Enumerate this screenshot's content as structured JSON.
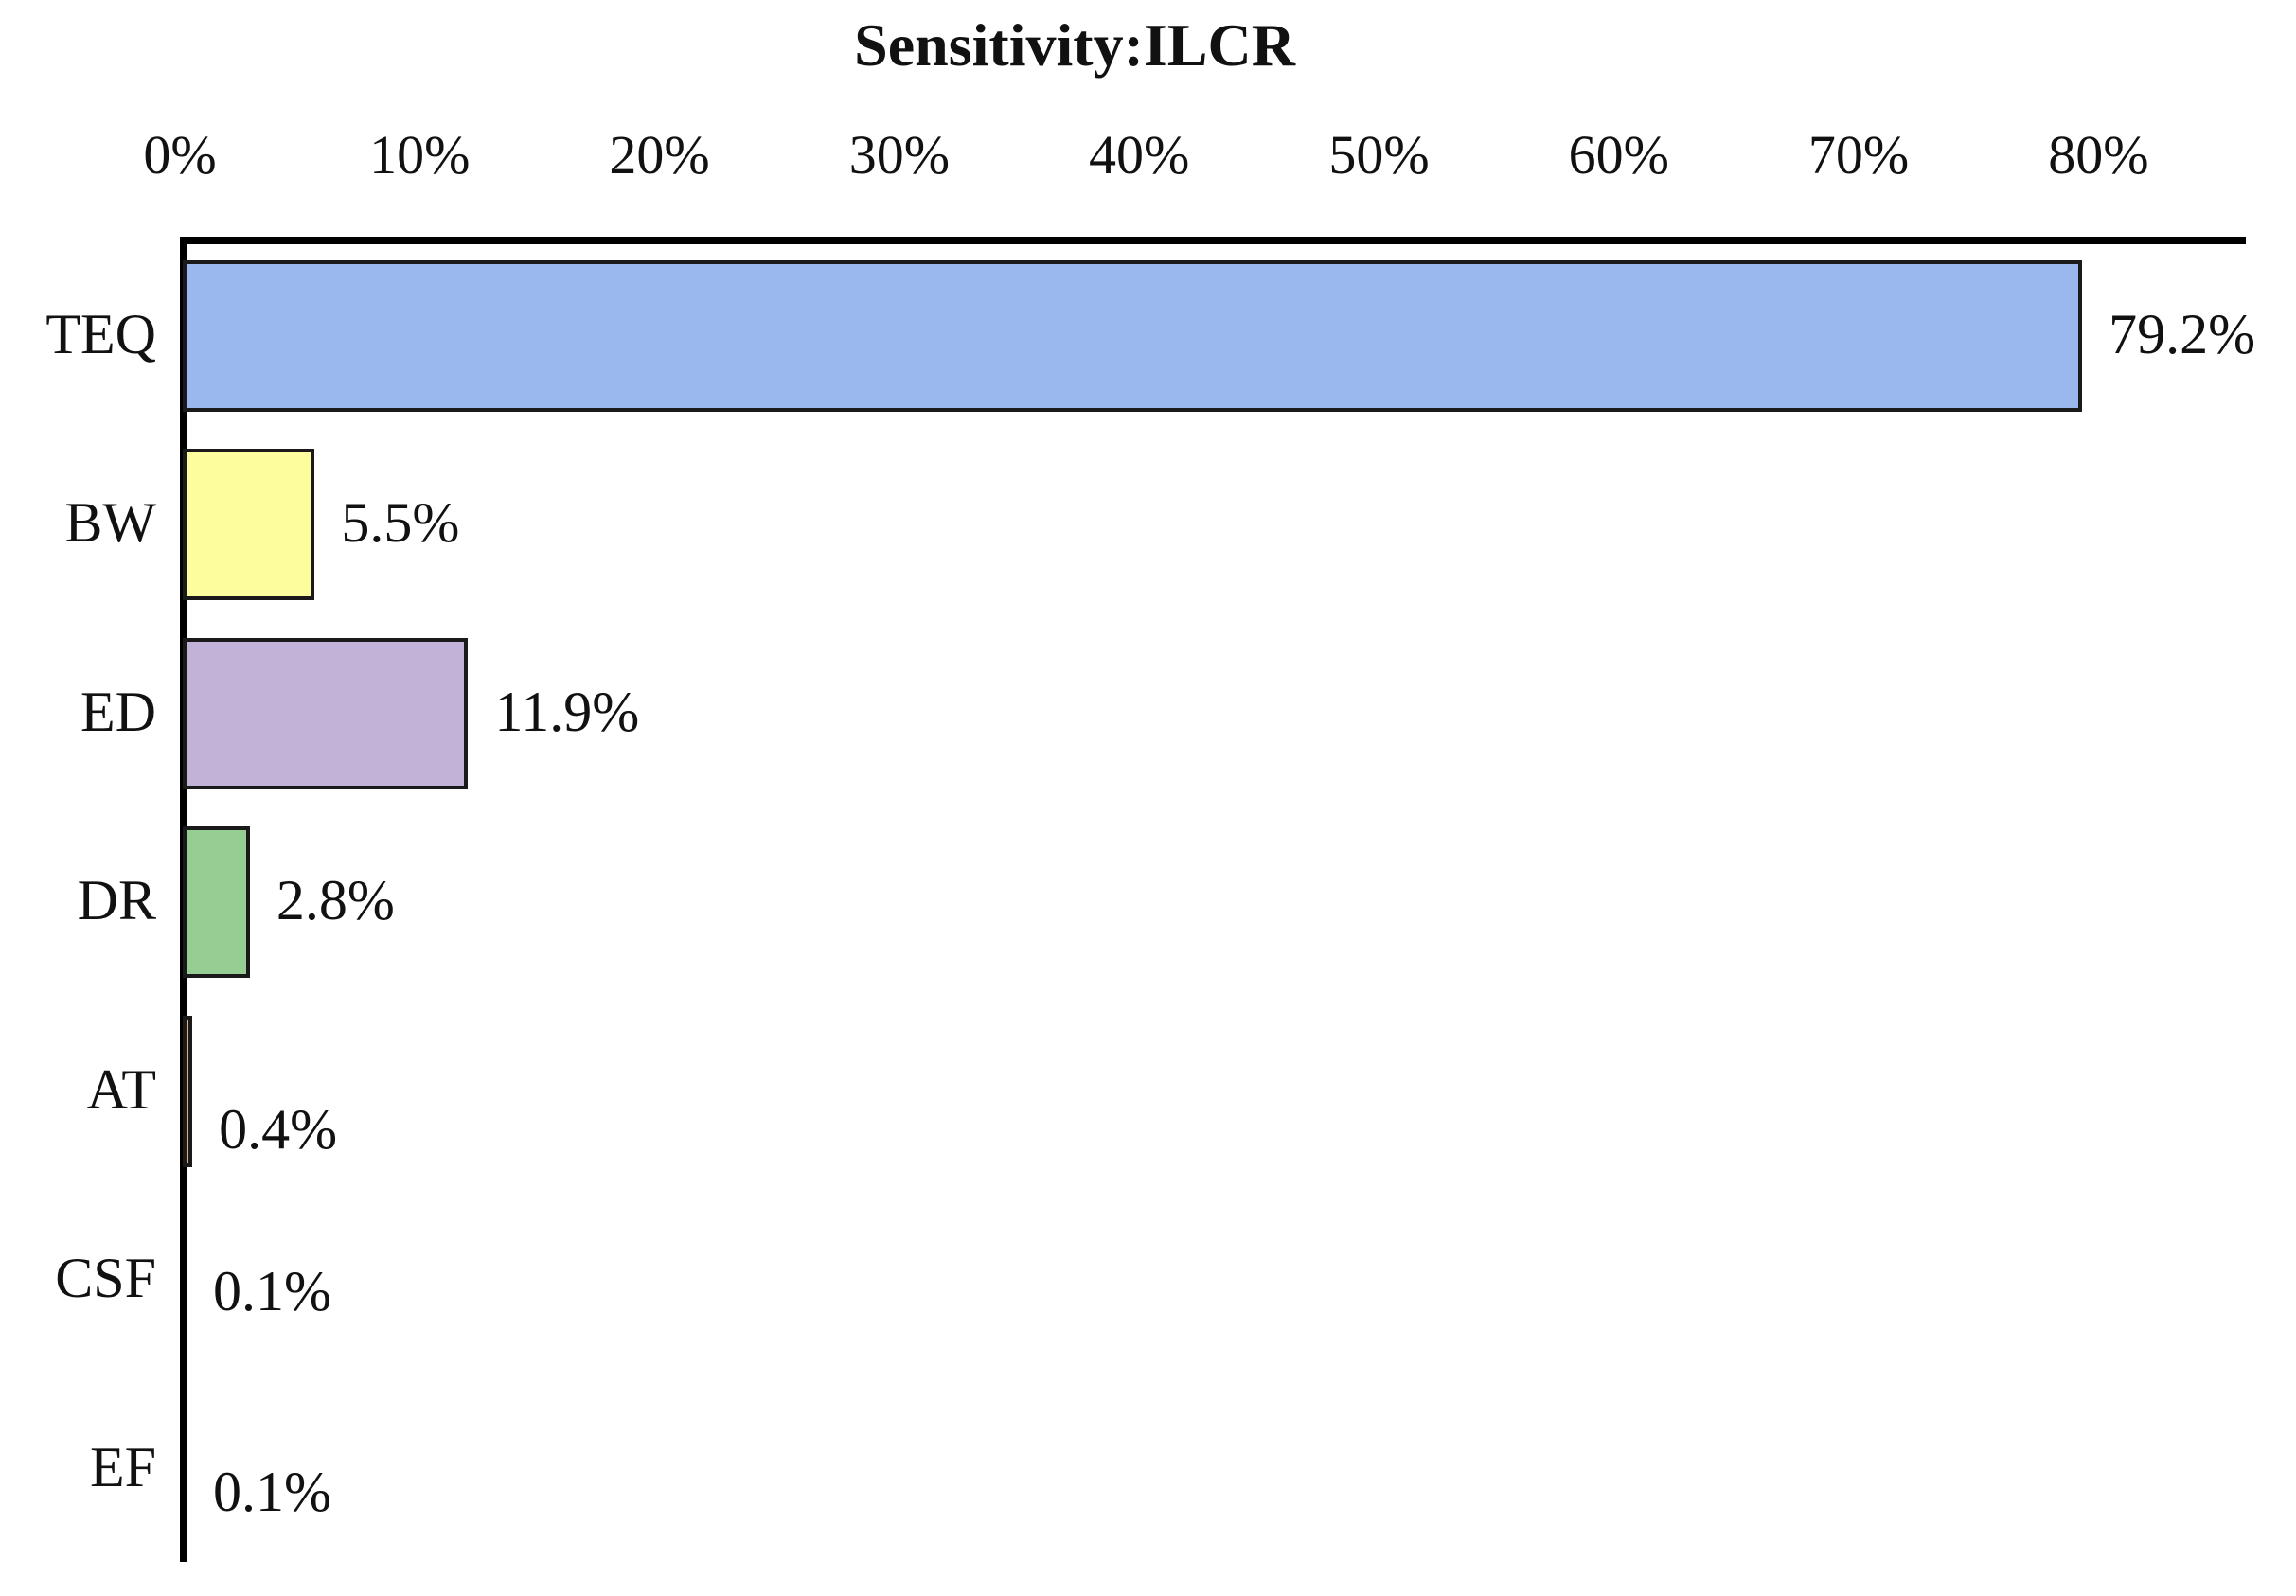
{
  "chart_data": {
    "type": "bar",
    "orientation": "horizontal",
    "title": "Sensitivity:ILCR",
    "categories": [
      "TEQ",
      "BW",
      "ED",
      "DR",
      "AT",
      "CSF",
      "EF"
    ],
    "values": [
      79.2,
      5.5,
      11.9,
      2.8,
      0.4,
      0.1,
      0.1
    ],
    "value_labels": [
      "79.2%",
      "5.5%",
      "11.9%",
      "2.8%",
      "0.4%",
      "0.1%",
      "0.1%"
    ],
    "bar_colors": [
      "#9ab8ee",
      "#fdfd9e",
      "#c2b2d7",
      "#95cd92",
      "#dfb183",
      "#dfb183",
      "#dfb183"
    ],
    "bar_border_color": "#1a1a1a",
    "axis_color": "#000000",
    "background_color": "#ffffff",
    "x_axis": {
      "min": 0,
      "max": 80,
      "unit": "%",
      "tick_labels": [
        "0%",
        "10%",
        "20%",
        "30%",
        "40%",
        "50%",
        "60%",
        "70%",
        "80%"
      ]
    },
    "legend": "none",
    "grid": "off",
    "value_labels_position": "right-of-bar"
  }
}
